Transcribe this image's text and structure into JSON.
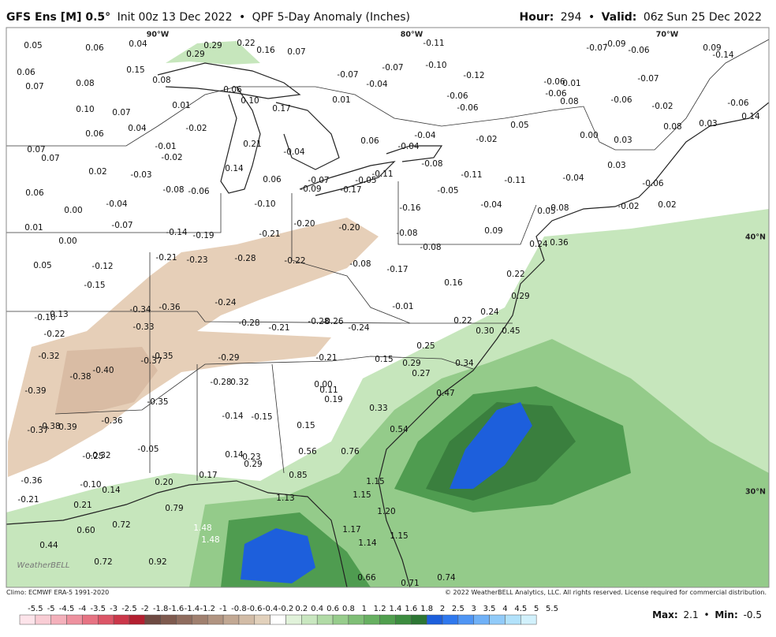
{
  "header": {
    "model": "GFS Ens [M] 0.5°",
    "init": "Init 00z 13 Dec 2022",
    "separator": "•",
    "product": "QPF 5-Day Anomaly (Inches)",
    "hour_label": "Hour:",
    "hour": "294",
    "valid_label": "Valid:",
    "valid": "06z Sun 25 Dec 2022"
  },
  "map": {
    "lon_labels": [
      "90°W",
      "80°W",
      "70°W"
    ],
    "lat_labels": [
      "40°N",
      "30°N"
    ],
    "logo": "WeatherBELL",
    "values": [
      "0.05",
      "0.06",
      "0.04",
      "0.29",
      "0.22",
      "0.16",
      "0.07",
      "-0.11",
      "-0.07",
      "-0.09",
      "-0.06",
      "0.09",
      "-0.14",
      "0.06",
      "0.15",
      "0.29",
      "0.08",
      "-0.07",
      "-0.04",
      "-0.07",
      "-0.10",
      "-0.12",
      "-0.06",
      "0.01",
      "-0.07",
      "0.07",
      "0.08",
      "0.06",
      "0.10",
      "0.17",
      "0.01",
      "-0.06",
      "-0.06",
      "-0.06",
      "0.08",
      "-0.06",
      "-0.02",
      "-0.06",
      "0.14",
      "0.10",
      "0.07",
      "0.01",
      "0.04",
      "-0.02",
      "0.06",
      "0.05",
      "-0.02",
      "-0.04",
      "-0.04",
      "0.06",
      "0.00",
      "0.08",
      "0.03",
      "0.03",
      "0.07",
      "0.07",
      "-0.01",
      "-0.02",
      "0.21",
      "-0.04",
      "0.14",
      "0.02",
      "-0.03",
      "0.06",
      "-0.07",
      "-0.09",
      "-0.05",
      "-0.11",
      "-0.17",
      "-0.08",
      "-0.11",
      "-0.11",
      "-0.04",
      "0.03",
      "-0.06",
      "0.06",
      "-0.08",
      "-0.06",
      "-0.05",
      "0.00",
      "-0.04",
      "-0.10",
      "-0.16",
      "-0.04",
      "0.05",
      "-0.08",
      "-0.02",
      "0.02",
      "0.01",
      "-0.07",
      "-0.14",
      "-0.19",
      "-0.21",
      "-0.20",
      "-0.20",
      "-0.08",
      "0.09",
      "0.00",
      "0.24",
      "0.36",
      "-0.08",
      "0.05",
      "-0.12",
      "-0.21",
      "-0.23",
      "-0.28",
      "-0.22",
      "-0.08",
      "-0.17",
      "-0.15",
      "0.16",
      "0.22",
      "-0.24",
      "0.29",
      "-0.34",
      "-0.36",
      "-0.01",
      "0.24",
      "-0.10",
      "0.13",
      "-0.33",
      "-0.28",
      "-0.21",
      "-0.28",
      "-0.26",
      "-0.24",
      "0.22",
      "0.30",
      "0.45",
      "-0.22",
      "0.25",
      "-0.32",
      "-0.35",
      "-0.37",
      "-0.29",
      "-0.21",
      "0.15",
      "0.29",
      "0.34",
      "-0.40",
      "-0.38",
      "0.27",
      "-0.28",
      "0.32",
      "0.00",
      "0.11",
      "0.47",
      "-0.39",
      "-0.35",
      "0.19",
      "0.33",
      "-0.14",
      "-0.15",
      "-0.36",
      "-0.37",
      "-0.38",
      "0.39",
      "0.15",
      "0.54",
      "-0.05",
      "0.56",
      "0.76",
      "0.14",
      "0.23",
      "0.29",
      "-0.32",
      "-0.25",
      "0.17",
      "0.85",
      "-0.36",
      "-0.10",
      "0.20",
      "1.15",
      "0.14",
      "1.13",
      "1.15",
      "-0.21",
      "0.21",
      "0.79",
      "1.20",
      "0.60",
      "0.72",
      "1.48",
      "1.17",
      "1.48",
      "1.14",
      "1.15",
      "0.44",
      "0.72",
      "0.92",
      "0.66",
      "0.71",
      "0.74"
    ]
  },
  "footer": {
    "climo": "Climo: ECMWF ERA-5 1991-2020",
    "copyright": "© 2022 WeatherBELL Analytics, LLC. All rights reserved. License required for commercial distribution.",
    "legend_values": [
      -5.5,
      -5,
      -4.5,
      -4,
      -3.5,
      -3,
      -2.5,
      -2,
      -1.8,
      -1.6,
      -1.4,
      -1.2,
      -1,
      -0.8,
      -0.6,
      -0.4,
      -0.2,
      0.2,
      0.4,
      0.6,
      0.8,
      1,
      1.2,
      1.4,
      1.6,
      1.8,
      2,
      2.5,
      3,
      3.5,
      4,
      4.5,
      5,
      5.5
    ],
    "legend_colors": [
      "#fde4ea",
      "#f9cdd5",
      "#f4b0bb",
      "#ee919f",
      "#e77383",
      "#dc5567",
      "#cb374a",
      "#b31f30",
      "#6e4a42",
      "#7e5a4e",
      "#8f6c5e",
      "#a0806f",
      "#b19481",
      "#c2a893",
      "#d2bca6",
      "#e2d1bc",
      "#ffffff",
      "#e1f2da",
      "#c9e7c0",
      "#b1dba6",
      "#97cd8c",
      "#7fbf76",
      "#67b061",
      "#509f4e",
      "#3c8c3f",
      "#2d7634",
      "#1d5fdc",
      "#2f78ee",
      "#4f95f4",
      "#70b1f7",
      "#91cbf9",
      "#b2e2fb",
      "#d2f1fc"
    ],
    "max_label": "Max:",
    "max": "2.1",
    "separator": "•",
    "min_label": "Min:",
    "min": "-0.5"
  }
}
